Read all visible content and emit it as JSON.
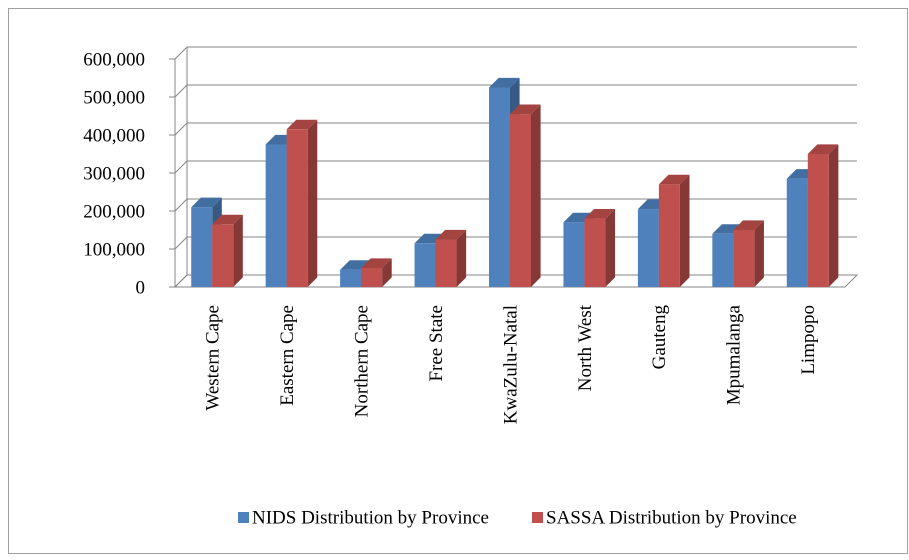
{
  "chart_data": {
    "type": "bar3d",
    "categories": [
      "Western Cape",
      "Eastern Cape",
      "Northern Cape",
      "Free State",
      "KwaZulu-Natal",
      "North West",
      "Gauteng",
      "Mpumalanga",
      "Limpopo"
    ],
    "series": [
      {
        "name": "NIDS Distribution by Province",
        "color": "#4f81bd",
        "values": [
          210000,
          375000,
          45000,
          115000,
          525000,
          170000,
          205000,
          140000,
          285000
        ]
      },
      {
        "name": "SASSA Distribution by Province",
        "color": "#c0504d",
        "values": [
          165000,
          415000,
          50000,
          125000,
          455000,
          180000,
          270000,
          150000,
          350000
        ]
      }
    ],
    "ylim": [
      0,
      600000
    ],
    "yticks": [
      0,
      {
        "value": 100000,
        "label": "100,000"
      },
      {
        "value": 200000,
        "label": "200,000"
      },
      {
        "value": 300000,
        "label": "300,000"
      },
      {
        "value": 400000,
        "label": "400,000"
      },
      {
        "value": 500000,
        "label": "500,000"
      },
      {
        "value": 600000,
        "label": "600,000"
      }
    ],
    "grid": true,
    "legend": "bottom"
  }
}
